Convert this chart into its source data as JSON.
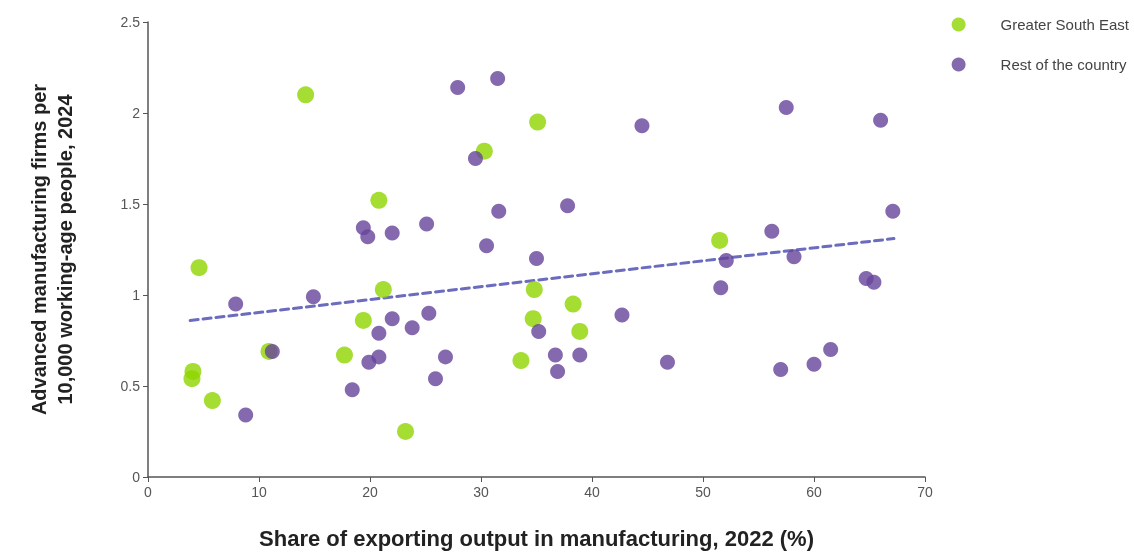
{
  "chart_data": {
    "type": "scatter",
    "xlabel": "Share of exporting output in manufacturing, 2022 (%)",
    "ylabel": "Advanced manufacturing firms per 10,000 working-age people, 2024",
    "xlim": [
      0,
      70
    ],
    "xticks": [
      0,
      10,
      20,
      30,
      40,
      50,
      60,
      70
    ],
    "ylim": [
      0,
      2.5
    ],
    "yticks": [
      0,
      0.5,
      1,
      1.5,
      2,
      2.5
    ],
    "grid": false,
    "legend": "top right",
    "marker": "circle",
    "series": [
      {
        "name": "Greater South East",
        "color": "#8fd400",
        "x": [
          3.96,
          4.05,
          4.6,
          5.8,
          10.9,
          14.2,
          17.7,
          19.4,
          20.8,
          21.2,
          23.2,
          30.3,
          33.6,
          34.8,
          34.7,
          35.1,
          38.3,
          38.9,
          51.5
        ],
        "values": [
          0.54,
          0.58,
          1.15,
          0.42,
          0.69,
          2.1,
          0.67,
          0.86,
          1.52,
          1.03,
          0.25,
          1.79,
          0.64,
          1.03,
          0.87,
          1.95,
          0.95,
          0.8,
          1.3
        ]
      },
      {
        "name": "Rest of the country",
        "color": "#67449a",
        "x": [
          7.9,
          8.8,
          11.2,
          14.9,
          18.4,
          19.4,
          19.8,
          19.9,
          20.8,
          20.8,
          22.0,
          22.0,
          23.8,
          25.1,
          25.3,
          25.9,
          26.8,
          27.9,
          29.5,
          30.5,
          31.5,
          31.6,
          35.0,
          35.2,
          36.7,
          36.9,
          37.8,
          38.9,
          42.7,
          44.5,
          46.8,
          51.6,
          52.1,
          56.2,
          57.5,
          57.0,
          58.2,
          60.0,
          61.5,
          64.7,
          65.4,
          66.0,
          67.1
        ],
        "values": [
          0.95,
          0.34,
          0.69,
          0.99,
          0.48,
          1.37,
          1.32,
          0.63,
          0.79,
          0.66,
          1.34,
          0.87,
          0.82,
          1.39,
          0.9,
          0.54,
          0.66,
          2.14,
          1.75,
          1.27,
          2.19,
          1.46,
          1.2,
          0.8,
          0.67,
          0.58,
          1.49,
          0.67,
          0.89,
          1.93,
          0.63,
          1.04,
          1.19,
          1.35,
          2.03,
          0.59,
          1.21,
          0.62,
          0.7,
          1.09,
          1.07,
          1.96,
          1.46
        ]
      },
      {
        "type": "line",
        "color": "#6b6bbf",
        "line_style": "dashed",
        "marker": "none",
        "x": [
          3.8,
          67.2
        ],
        "values": [
          0.86,
          1.31
        ]
      }
    ]
  }
}
